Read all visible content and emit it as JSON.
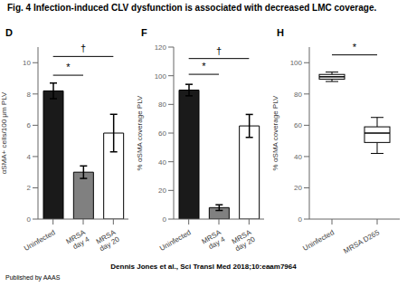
{
  "title": "Fig. 4 Infection-induced CLV dysfunction is associated with decreased LMC coverage.",
  "annotations": [
    "Dennis Jones et al., Sci Transl Med 2018;10:eaam7964",
    "Published by AAAS"
  ],
  "chart_data": [
    {
      "type": "bar",
      "title": "D",
      "categories": [
        "Uninfected",
        "MRSA\nday 4",
        "MRSA\nday 20"
      ],
      "values": [
        8.2,
        3.0,
        5.5
      ],
      "errors": [
        0.5,
        0.4,
        1.2
      ],
      "colors": [
        "#1a1a1a",
        "#808080",
        "#ffffff"
      ],
      "ylabel": "αSMA+ cells/100 μm PLV",
      "ylim": [
        0,
        11
      ],
      "yticks": [
        0,
        2,
        4,
        6,
        8,
        10
      ],
      "annotations": [
        {
          "text": "*",
          "from": "Uninfected",
          "to": "MRSA\nday 4",
          "y": 9.2
        },
        {
          "text": "†",
          "from": "Uninfected",
          "to": "MRSA\nday 20",
          "y": 10.4
        }
      ]
    },
    {
      "type": "bar",
      "title": "F",
      "categories": [
        "Uninfected",
        "MRSA\nday 4",
        "MRSA\nday 20"
      ],
      "values": [
        90,
        8,
        65
      ],
      "errors": [
        4,
        2,
        8
      ],
      "colors": [
        "#1a1a1a",
        "#808080",
        "#ffffff"
      ],
      "ylabel": "% αSMA coverage PLV",
      "ylim": [
        0,
        120
      ],
      "yticks": [
        0,
        20,
        40,
        60,
        80,
        100,
        120
      ],
      "annotations": [
        {
          "text": "*",
          "from": "Uninfected",
          "to": "MRSA\nday 4",
          "y": 101
        },
        {
          "text": "†",
          "from": "Uninfected",
          "to": "MRSA\nday 20",
          "y": 112
        }
      ]
    },
    {
      "type": "box",
      "title": "H",
      "categories": [
        "Uninfected",
        "MRSA D265"
      ],
      "boxes": [
        {
          "min": 88,
          "q1": 89.5,
          "median": 91,
          "q3": 92.5,
          "max": 94
        },
        {
          "min": 42,
          "q1": 49,
          "median": 55,
          "q3": 59,
          "max": 65
        }
      ],
      "color": "#ffffff",
      "ylabel": "% αSMA coverage PLV",
      "ylim": [
        0,
        110
      ],
      "yticks": [
        0,
        20,
        40,
        60,
        80,
        100
      ],
      "annotations": [
        {
          "text": "*",
          "from": "Uninfected",
          "to": "MRSA D265",
          "y": 105
        }
      ]
    }
  ]
}
